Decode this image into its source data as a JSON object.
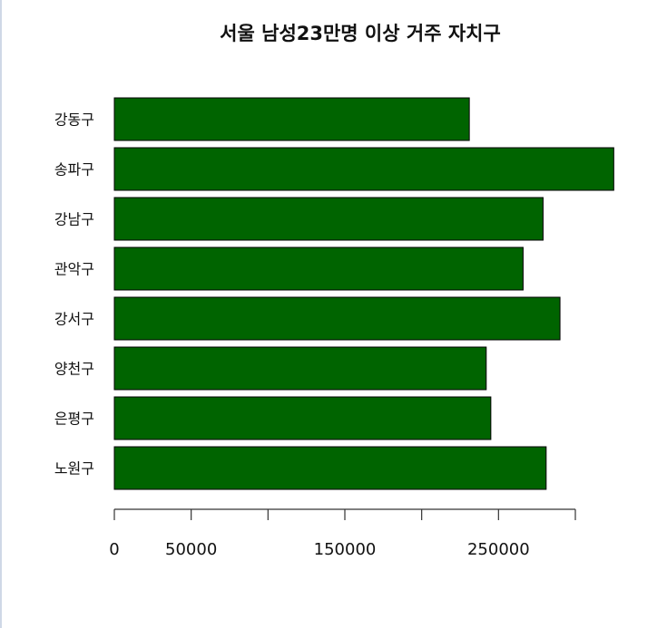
{
  "chart_data": {
    "type": "bar",
    "orientation": "horizontal",
    "title": "서울 남성23만명 이상 거주 자치구",
    "xlabel": "",
    "ylabel": "",
    "categories": [
      "강동구",
      "송파구",
      "강남구",
      "관악구",
      "강서구",
      "양천구",
      "은평구",
      "노원구"
    ],
    "values": [
      231000,
      325000,
      279000,
      266000,
      290000,
      242000,
      245000,
      281000
    ],
    "xlim": [
      0,
      300000
    ],
    "x_ticks": [
      0,
      50000,
      100000,
      150000,
      200000,
      250000,
      300000
    ],
    "x_tick_labels": [
      "0",
      "50000",
      "",
      "150000",
      "",
      "250000",
      ""
    ],
    "bar_color": "#006400",
    "bar_border": "#000000",
    "grid": false,
    "legend": "none"
  }
}
